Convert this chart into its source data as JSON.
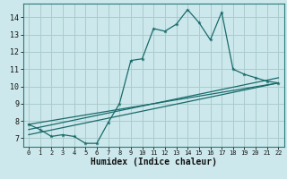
{
  "xlabel": "Humidex (Indice chaleur)",
  "bg_color": "#cce8ec",
  "grid_color": "#aacccc",
  "line_color": "#1a6b6b",
  "xlim": [
    -0.5,
    22.5
  ],
  "ylim": [
    6.5,
    14.8
  ],
  "xticks": [
    0,
    1,
    2,
    3,
    4,
    5,
    6,
    7,
    8,
    9,
    10,
    11,
    12,
    13,
    14,
    15,
    16,
    17,
    18,
    19,
    20,
    21,
    22
  ],
  "yticks": [
    7,
    8,
    9,
    10,
    11,
    12,
    13,
    14
  ],
  "line1_x": [
    0,
    1,
    2,
    3,
    4,
    5,
    6,
    7,
    8,
    9,
    10,
    11,
    12,
    13,
    14,
    15,
    16,
    17,
    18,
    19,
    20,
    21,
    22
  ],
  "line1_y": [
    7.8,
    7.5,
    7.1,
    7.2,
    7.1,
    6.7,
    6.7,
    7.9,
    9.0,
    11.5,
    11.6,
    13.35,
    13.2,
    13.6,
    14.45,
    13.7,
    12.7,
    14.3,
    11.0,
    10.7,
    10.5,
    10.3,
    10.2
  ],
  "line2_x": [
    0,
    22
  ],
  "line2_y": [
    7.8,
    10.2
  ],
  "line3_x": [
    0,
    22
  ],
  "line3_y": [
    7.5,
    10.5
  ],
  "line4_x": [
    0,
    22
  ],
  "line4_y": [
    7.2,
    10.2
  ]
}
